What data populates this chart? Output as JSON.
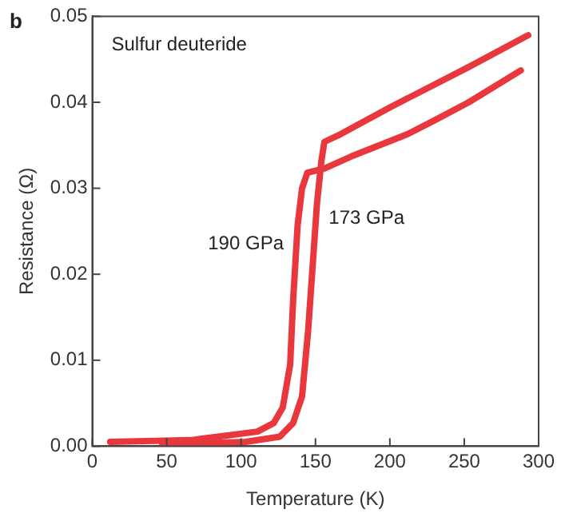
{
  "chart_data": {
    "type": "line",
    "title": "Sulfur deuteride",
    "xlabel": "Temperature (K)",
    "ylabel": "Resistance (Ω)",
    "annotations": [
      "b"
    ],
    "series": [
      {
        "name": "190 GPa",
        "color": "#e8373d",
        "x": [
          12,
          66,
          111,
          122,
          128,
          133,
          135,
          138,
          141,
          144.5,
          156,
          174,
          212,
          230,
          253,
          288
        ],
        "values": [
          0.0005,
          0.0007,
          0.0017,
          0.0027,
          0.0045,
          0.0095,
          0.017,
          0.0257,
          0.03,
          0.0318,
          0.0323,
          0.0337,
          0.0363,
          0.0379,
          0.04,
          0.0437
        ]
      },
      {
        "name": "173 GPa",
        "color": "#e8373d",
        "x": [
          47,
          103,
          126,
          135,
          141,
          145,
          148,
          151,
          154,
          156,
          167,
          200,
          253,
          293
        ],
        "values": [
          0.0002,
          0.0005,
          0.0011,
          0.0027,
          0.0058,
          0.0133,
          0.0207,
          0.0282,
          0.0332,
          0.0354,
          0.0363,
          0.0394,
          0.0441,
          0.0478
        ]
      }
    ],
    "xlim": [
      0,
      300
    ],
    "xticks": [
      0,
      50,
      100,
      150,
      200,
      250,
      300
    ],
    "ylim": [
      0,
      0.05
    ],
    "yticks": [
      {
        "value": 0,
        "label": "0.00"
      },
      {
        "value": 0.01,
        "label": "0.01"
      },
      {
        "value": 0.02,
        "label": "0.02"
      },
      {
        "value": 0.03,
        "label": "0.03"
      },
      {
        "value": 0.04,
        "label": "0.04"
      },
      {
        "value": 0.05,
        "label": "0.05"
      }
    ],
    "grid": false,
    "legend": false,
    "marker": "none",
    "line_style": "solid"
  }
}
